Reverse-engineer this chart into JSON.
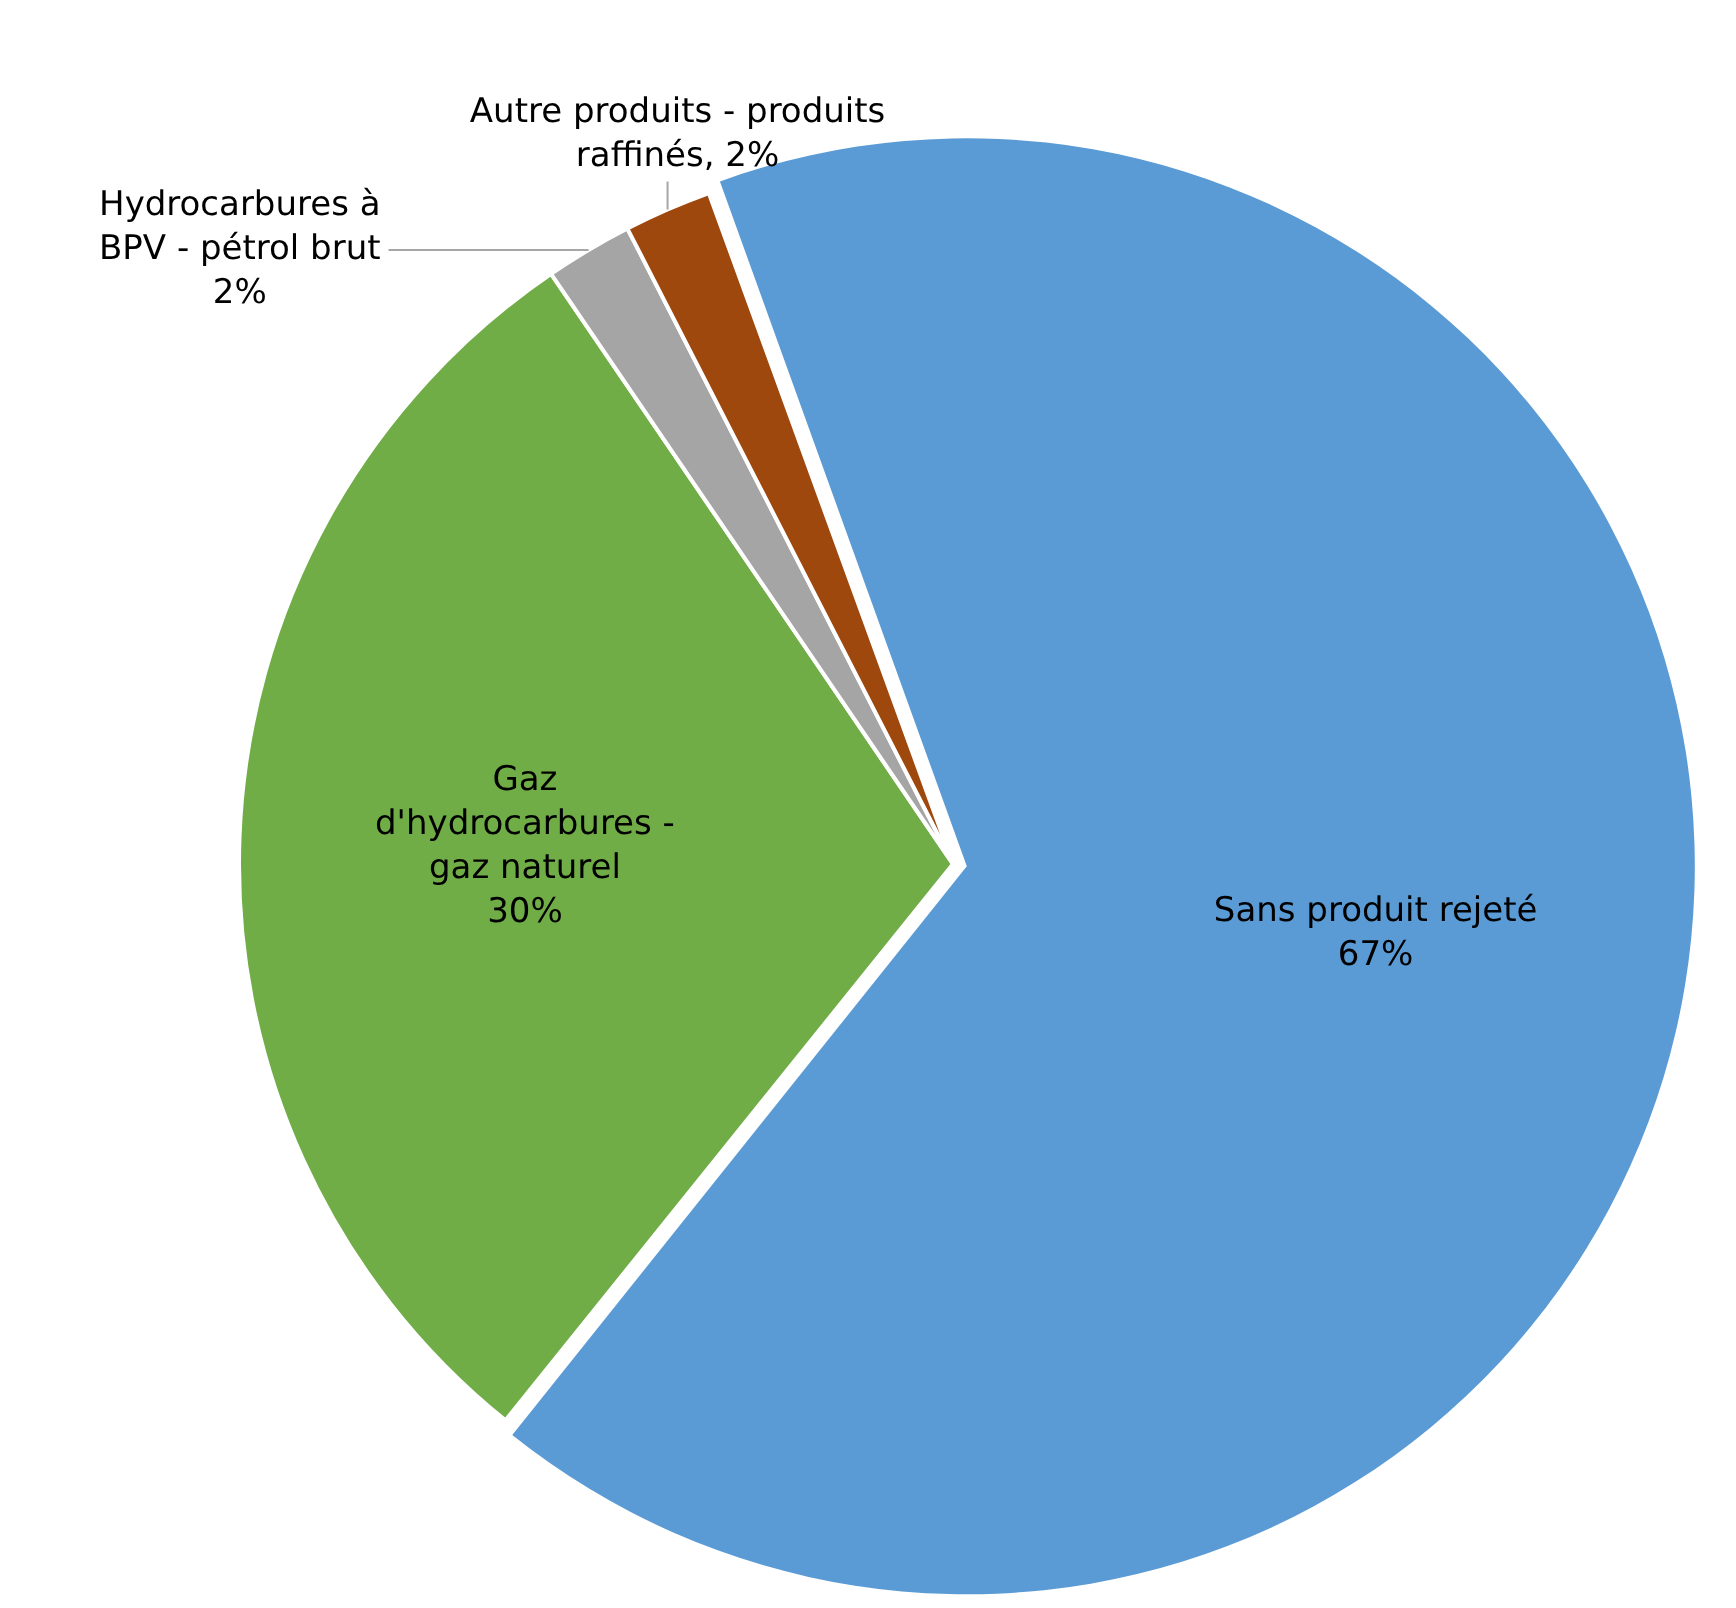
{
  "chart_data": {
    "type": "pie",
    "categories": [
      "Sans produit rejeté",
      "Gaz d'hydrocarbures - gaz naturel",
      "Hydrocarbures à BPV - pétrol brut",
      "Autre produits - produits raffinés"
    ],
    "values": [
      67,
      30,
      2,
      2
    ],
    "value_labels": [
      "67%",
      "30%",
      "2%",
      "2%"
    ],
    "colors": [
      "#5b9bd5",
      "#70ad47",
      "#a5a5a5",
      "#9e480e"
    ],
    "legend": false
  }
}
